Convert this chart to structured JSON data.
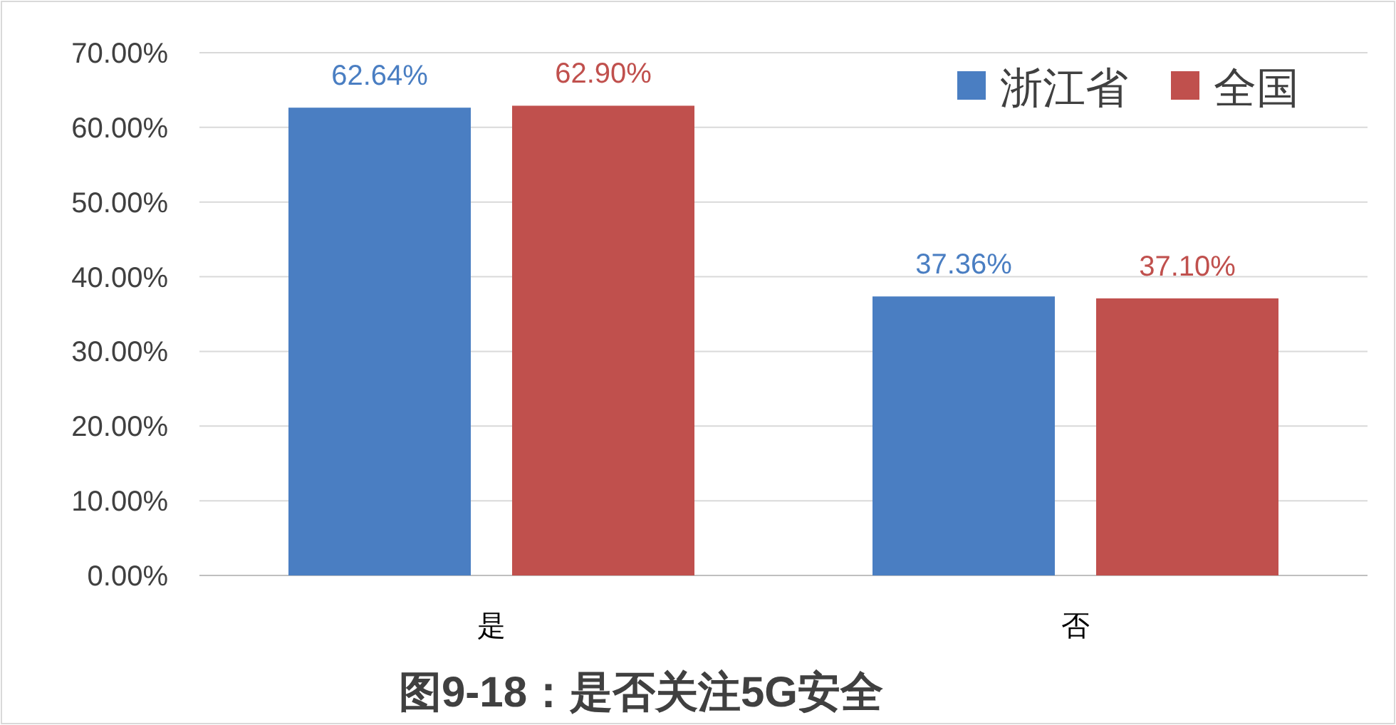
{
  "chart_data": {
    "type": "bar",
    "title": "图9-18：是否关注5G安全",
    "categories": [
      "是",
      "否"
    ],
    "series": [
      {
        "name": "浙江省",
        "color": "#4a7ec2",
        "values": [
          62.64,
          37.36
        ],
        "value_labels": [
          "62.64%",
          "37.36%"
        ]
      },
      {
        "name": "全国",
        "color": "#c0504d",
        "values": [
          62.9,
          37.1
        ],
        "value_labels": [
          "62.90%",
          "37.10%"
        ]
      }
    ],
    "ylim": [
      0,
      70
    ],
    "yticks": [
      {
        "value": 0,
        "label": "0.00%"
      },
      {
        "value": 10,
        "label": "10.00%"
      },
      {
        "value": 20,
        "label": "20.00%"
      },
      {
        "value": 30,
        "label": "30.00%"
      },
      {
        "value": 40,
        "label": "40.00%"
      },
      {
        "value": 50,
        "label": "50.00%"
      },
      {
        "value": 60,
        "label": "60.00%"
      },
      {
        "value": 70,
        "label": "70.00%"
      }
    ],
    "grid": "y",
    "legend": "top right"
  }
}
